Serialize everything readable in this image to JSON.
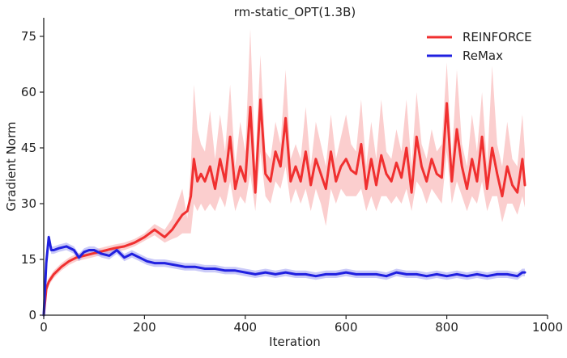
{
  "chart_data": {
    "type": "line",
    "title": "rm-static_OPT(1.3B)",
    "xlabel": "Iteration",
    "ylabel": "Gradient Norm",
    "xlim": [
      0,
      1000
    ],
    "ylim": [
      0,
      80
    ],
    "xticks": [
      0,
      200,
      400,
      600,
      800,
      1000
    ],
    "yticks": [
      0,
      15,
      30,
      45,
      60,
      75
    ],
    "grid": false,
    "legend_position": "top-right",
    "series": [
      {
        "name": "REINFORCE",
        "color": "#f03030",
        "band_color": "#f7a5a5",
        "x": [
          0,
          5,
          10,
          20,
          35,
          50,
          65,
          80,
          95,
          110,
          125,
          140,
          160,
          180,
          200,
          220,
          240,
          255,
          265,
          275,
          285,
          292,
          298,
          305,
          312,
          320,
          330,
          340,
          350,
          360,
          370,
          380,
          390,
          400,
          410,
          420,
          430,
          440,
          450,
          460,
          470,
          480,
          490,
          500,
          510,
          520,
          530,
          540,
          550,
          560,
          570,
          580,
          590,
          600,
          610,
          620,
          630,
          640,
          650,
          660,
          670,
          680,
          690,
          700,
          710,
          720,
          730,
          740,
          750,
          760,
          770,
          780,
          790,
          800,
          810,
          820,
          830,
          840,
          850,
          860,
          870,
          880,
          890,
          900,
          910,
          920,
          930,
          940,
          950,
          955
        ],
        "values": [
          0,
          7,
          9,
          11,
          13,
          14.5,
          15.5,
          16,
          16.5,
          17,
          17.5,
          18,
          18.5,
          19.5,
          21,
          23,
          21,
          23,
          25,
          27,
          28,
          32,
          42,
          36,
          38,
          36,
          40,
          34,
          42,
          36,
          48,
          34,
          40,
          36,
          56,
          33,
          58,
          38,
          36,
          44,
          40,
          53,
          36,
          40,
          36,
          44,
          35,
          42,
          38,
          34,
          44,
          36,
          40,
          42,
          39,
          38,
          46,
          34,
          42,
          35,
          43,
          38,
          36,
          41,
          37,
          45,
          33,
          48,
          40,
          36,
          42,
          38,
          37,
          57,
          36,
          50,
          40,
          34,
          42,
          36,
          48,
          34,
          45,
          38,
          32,
          40,
          35,
          33,
          42,
          35
        ],
        "band_upper": [
          0,
          8,
          10,
          12,
          14,
          15.5,
          16.5,
          17,
          17.5,
          18,
          18.5,
          19,
          19.5,
          20.5,
          22,
          24.5,
          23,
          26,
          30,
          34,
          26,
          40,
          62,
          50,
          46,
          44,
          55,
          42,
          54,
          44,
          62,
          40,
          52,
          44,
          77,
          40,
          70,
          44,
          42,
          52,
          46,
          66,
          42,
          46,
          42,
          56,
          40,
          52,
          46,
          40,
          54,
          42,
          48,
          54,
          46,
          44,
          58,
          40,
          52,
          42,
          58,
          44,
          42,
          50,
          44,
          58,
          40,
          60,
          46,
          42,
          50,
          44,
          46,
          68,
          42,
          66,
          46,
          40,
          54,
          44,
          60,
          40,
          67,
          46,
          40,
          52,
          42,
          40,
          54,
          44
        ],
        "band_lower": [
          0,
          6,
          8,
          10,
          12,
          13.5,
          14.5,
          15,
          15.5,
          16,
          16.5,
          17,
          17.5,
          18.5,
          20,
          21.5,
          19.5,
          20.5,
          21,
          22,
          22,
          22,
          30,
          28,
          30,
          28,
          30,
          28,
          32,
          29,
          36,
          28,
          32,
          30,
          38,
          28,
          44,
          32,
          30,
          36,
          34,
          40,
          30,
          34,
          30,
          34,
          28,
          34,
          30,
          24,
          34,
          30,
          34,
          32,
          32,
          32,
          34,
          28,
          32,
          28,
          32,
          32,
          30,
          32,
          30,
          34,
          28,
          36,
          34,
          30,
          34,
          32,
          30,
          44,
          30,
          36,
          32,
          28,
          32,
          30,
          36,
          28,
          32,
          32,
          25,
          30,
          30,
          27,
          32,
          29
        ]
      },
      {
        "name": "ReMax",
        "color": "#2020e0",
        "band_color": "#9f9ff2",
        "x": [
          0,
          5,
          10,
          15,
          20,
          30,
          45,
          60,
          70,
          80,
          90,
          100,
          115,
          130,
          145,
          160,
          175,
          190,
          205,
          220,
          240,
          260,
          280,
          300,
          320,
          340,
          360,
          380,
          400,
          420,
          440,
          460,
          480,
          500,
          520,
          540,
          560,
          580,
          600,
          620,
          640,
          660,
          680,
          700,
          720,
          740,
          760,
          780,
          800,
          820,
          840,
          860,
          880,
          900,
          920,
          940,
          950,
          955
        ],
        "values": [
          0,
          14,
          21,
          17.5,
          17.5,
          18,
          18.5,
          17.5,
          15.5,
          17,
          17.5,
          17.5,
          16.5,
          16,
          17.5,
          15.5,
          16.5,
          15.5,
          14.5,
          14,
          14,
          13.5,
          13,
          13,
          12.5,
          12.5,
          12,
          12,
          11.5,
          11,
          11.5,
          11,
          11.5,
          11,
          11,
          10.5,
          11,
          11,
          11.5,
          11,
          11,
          11,
          10.5,
          11.5,
          11,
          11,
          10.5,
          11,
          10.5,
          11,
          10.5,
          11,
          10.5,
          11,
          11,
          10.5,
          11.5,
          11.5
        ],
        "band_upper": [
          0,
          15,
          22,
          18.5,
          18.5,
          19,
          19.5,
          18.5,
          16.5,
          18,
          18.5,
          18.5,
          17.5,
          17,
          18.5,
          16.5,
          17.5,
          16.5,
          15.5,
          15,
          15,
          14.5,
          14,
          14,
          13.5,
          13.5,
          13,
          13,
          12.5,
          12,
          12.5,
          12,
          12.5,
          12,
          12,
          11.5,
          12,
          12,
          12.5,
          12,
          12,
          12,
          11.5,
          12.5,
          12,
          12,
          11.5,
          12,
          11.5,
          12,
          11.5,
          12,
          11.5,
          12,
          12,
          11.5,
          12.5,
          12.5
        ],
        "band_lower": [
          0,
          13,
          20,
          16.5,
          16.5,
          17,
          17.5,
          16.5,
          14.5,
          16,
          16.5,
          16.5,
          15.5,
          15,
          16.5,
          14.5,
          15.5,
          14.5,
          13.5,
          13,
          13,
          12.5,
          12,
          12,
          11.5,
          11.5,
          11,
          11,
          10.5,
          10,
          10.5,
          10,
          10.5,
          10,
          10,
          9.5,
          10,
          10,
          10.5,
          10,
          10,
          10,
          9.5,
          10.5,
          10,
          10,
          9.5,
          10,
          9.5,
          10,
          9.5,
          10,
          9.5,
          10,
          10,
          9.5,
          10.5,
          10.5
        ]
      }
    ]
  }
}
